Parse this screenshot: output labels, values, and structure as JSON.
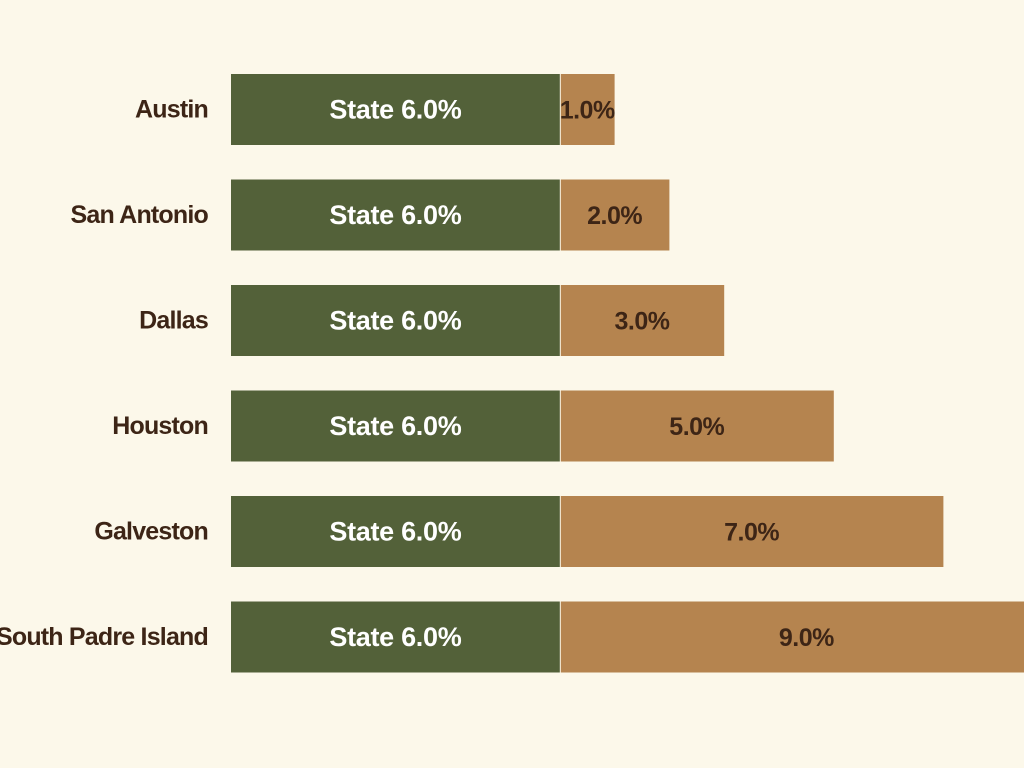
{
  "colors": {
    "background": "#fcf8ea",
    "state": "#536139",
    "local": "#b5844f",
    "label": "#3d2516"
  },
  "chart_data": {
    "type": "bar",
    "orientation": "horizontal",
    "stacked": true,
    "categories": [
      "Austin",
      "San Antonio",
      "Dallas",
      "Houston",
      "Galveston",
      "South Padre Island"
    ],
    "series": [
      {
        "key": "state",
        "values": [
          6.0,
          6.0,
          6.0,
          6.0,
          6.0,
          6.0
        ],
        "labels": [
          "State 6.0%",
          "State 6.0%",
          "State 6.0%",
          "State 6.0%",
          "State 6.0%",
          "State 6.0%"
        ]
      },
      {
        "key": "local",
        "values": [
          1.0,
          2.0,
          3.0,
          5.0,
          7.0,
          9.0
        ],
        "labels": [
          "1.0%",
          "2.0%",
          "3.0%",
          "5.0%",
          "7.0%",
          "9.0%"
        ]
      }
    ],
    "title": "",
    "xlabel": "",
    "ylabel": "",
    "grid": false,
    "legend": "none"
  }
}
